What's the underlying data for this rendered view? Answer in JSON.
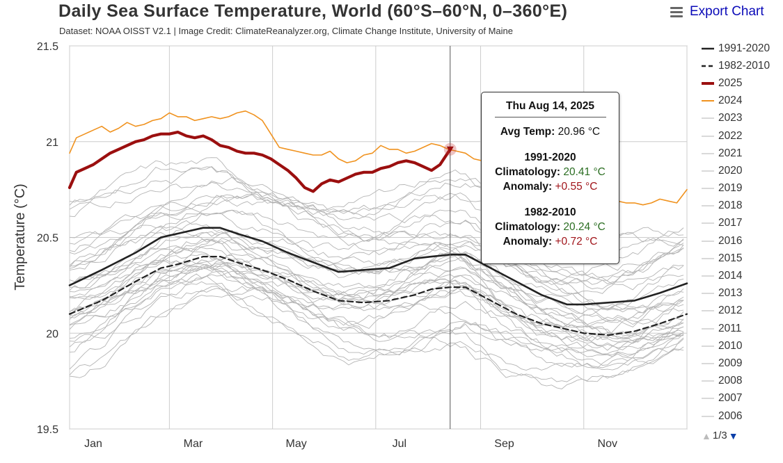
{
  "header": {
    "title": "Daily Sea Surface Temperature, World (60°S–60°N, 0–360°E)",
    "subtitle": "Dataset: NOAA OISST V2.1 | Image Credit: ClimateReanalyzer.org, Climate Change Institute, University of Maine",
    "export_label": "Export Chart"
  },
  "legend": {
    "items": [
      {
        "label": "1991-2020",
        "style": "solid-black"
      },
      {
        "label": "1982-2010",
        "style": "dashed-black"
      },
      {
        "label": "2025",
        "style": "red"
      },
      {
        "label": "2024",
        "style": "orange"
      },
      {
        "label": "2023",
        "style": "grey"
      },
      {
        "label": "2022",
        "style": "grey"
      },
      {
        "label": "2021",
        "style": "grey"
      },
      {
        "label": "2020",
        "style": "grey"
      },
      {
        "label": "2019",
        "style": "grey"
      },
      {
        "label": "2018",
        "style": "grey"
      },
      {
        "label": "2017",
        "style": "grey"
      },
      {
        "label": "2016",
        "style": "grey"
      },
      {
        "label": "2015",
        "style": "grey"
      },
      {
        "label": "2014",
        "style": "grey"
      },
      {
        "label": "2013",
        "style": "grey"
      },
      {
        "label": "2012",
        "style": "grey"
      },
      {
        "label": "2011",
        "style": "grey"
      },
      {
        "label": "2010",
        "style": "grey"
      },
      {
        "label": "2009",
        "style": "grey"
      },
      {
        "label": "2008",
        "style": "grey"
      },
      {
        "label": "2007",
        "style": "grey"
      },
      {
        "label": "2006",
        "style": "grey"
      }
    ],
    "page_label": "1/3"
  },
  "tooltip": {
    "date": "Thu Aug 14, 2025",
    "avg_label": "Avg Temp:",
    "avg_value": "20.96 °C",
    "block1_title": "1991-2020",
    "block1_clim_label": "Climatology:",
    "block1_clim_value": "20.41 °C",
    "block1_anom_label": "Anomaly:",
    "block1_anom_value": "+0.55 °C",
    "block2_title": "1982-2010",
    "block2_clim_label": "Climatology:",
    "block2_clim_value": "20.24 °C",
    "block2_anom_label": "Anomaly:",
    "block2_anom_value": "+0.72 °C"
  },
  "colors": {
    "clim_1991_2020": "#222222",
    "clim_1982_2010": "#222222",
    "year_2025": "#9b0f0f",
    "year_2024": "#f0921e",
    "past_years": "#b4b4b4",
    "grid": "#cccccc"
  },
  "chart_data": {
    "type": "line",
    "title": "Daily Sea Surface Temperature, World (60°S–60°N, 0–360°E)",
    "ylabel": "Temperature (°C)",
    "xlabel": "",
    "ylim": [
      19.5,
      21.5
    ],
    "yticks": [
      "21.5",
      "21",
      "20.5",
      "20",
      "19.5"
    ],
    "ytick_values": [
      21.5,
      21,
      20.5,
      20,
      19.5
    ],
    "xlim": [
      1,
      366
    ],
    "xticks": [
      {
        "label": "Jan",
        "day": 15
      },
      {
        "label": "Mar",
        "day": 74
      },
      {
        "label": "May",
        "day": 135
      },
      {
        "label": "Jul",
        "day": 196
      },
      {
        "label": "Sep",
        "day": 258
      },
      {
        "label": "Nov",
        "day": 319
      }
    ],
    "vertical_gridlines_day": [
      1,
      60,
      121,
      182,
      244,
      305,
      366
    ],
    "grid": true,
    "highlight": {
      "day": 226,
      "value": 20.96
    },
    "series": [
      {
        "name": "1991-2020",
        "style": "solid-black",
        "x": [
          1,
          20,
          40,
          55,
          65,
          80,
          90,
          100,
          115,
          130,
          145,
          160,
          175,
          190,
          205,
          215,
          226,
          235,
          250,
          265,
          280,
          295,
          305,
          320,
          335,
          350,
          366
        ],
        "y": [
          20.25,
          20.33,
          20.42,
          20.5,
          20.52,
          20.55,
          20.55,
          20.52,
          20.48,
          20.42,
          20.37,
          20.32,
          20.33,
          20.34,
          20.39,
          20.4,
          20.41,
          20.41,
          20.34,
          20.27,
          20.2,
          20.15,
          20.15,
          20.16,
          20.17,
          20.21,
          20.26
        ]
      },
      {
        "name": "1982-2010",
        "style": "dashed-black",
        "x": [
          1,
          20,
          40,
          55,
          65,
          80,
          90,
          100,
          115,
          130,
          145,
          160,
          175,
          190,
          205,
          215,
          226,
          235,
          250,
          265,
          280,
          295,
          305,
          320,
          335,
          350,
          366
        ],
        "y": [
          20.1,
          20.17,
          20.27,
          20.34,
          20.36,
          20.4,
          20.4,
          20.37,
          20.33,
          20.28,
          20.22,
          20.17,
          20.16,
          20.17,
          20.2,
          20.23,
          20.24,
          20.24,
          20.17,
          20.1,
          20.05,
          20.02,
          20.0,
          19.99,
          20.01,
          20.05,
          20.1
        ]
      },
      {
        "name": "2025",
        "style": "red",
        "x": [
          1,
          5,
          10,
          15,
          20,
          25,
          30,
          35,
          40,
          45,
          50,
          55,
          60,
          65,
          70,
          75,
          80,
          85,
          90,
          95,
          100,
          105,
          110,
          115,
          120,
          125,
          130,
          135,
          140,
          145,
          150,
          155,
          160,
          165,
          170,
          175,
          180,
          185,
          190,
          195,
          200,
          205,
          210,
          215,
          220,
          226
        ],
        "y": [
          20.76,
          20.84,
          20.86,
          20.88,
          20.91,
          20.94,
          20.96,
          20.98,
          21.0,
          21.01,
          21.03,
          21.04,
          21.04,
          21.05,
          21.03,
          21.02,
          21.03,
          21.01,
          20.98,
          20.97,
          20.95,
          20.94,
          20.94,
          20.93,
          20.91,
          20.88,
          20.85,
          20.81,
          20.76,
          20.74,
          20.78,
          20.8,
          20.79,
          20.81,
          20.83,
          20.84,
          20.84,
          20.86,
          20.87,
          20.89,
          20.9,
          20.89,
          20.87,
          20.85,
          20.88,
          20.96
        ]
      },
      {
        "name": "2024",
        "style": "orange",
        "x": [
          1,
          5,
          10,
          15,
          20,
          25,
          30,
          35,
          40,
          45,
          50,
          55,
          60,
          65,
          70,
          75,
          80,
          85,
          90,
          95,
          100,
          105,
          110,
          115,
          120,
          125,
          130,
          135,
          140,
          145,
          150,
          155,
          160,
          165,
          170,
          175,
          180,
          185,
          190,
          195,
          200,
          205,
          210,
          215,
          220,
          225,
          230,
          235,
          240,
          245,
          250,
          255,
          260,
          265,
          270,
          275,
          280,
          285,
          290,
          295,
          300,
          305,
          310,
          315,
          320,
          325,
          330,
          335,
          340,
          345,
          350,
          355,
          360,
          366
        ],
        "y": [
          20.94,
          21.02,
          21.04,
          21.06,
          21.08,
          21.05,
          21.07,
          21.1,
          21.08,
          21.09,
          21.11,
          21.12,
          21.15,
          21.13,
          21.13,
          21.11,
          21.12,
          21.13,
          21.12,
          21.13,
          21.15,
          21.16,
          21.14,
          21.11,
          21.04,
          20.97,
          20.96,
          20.95,
          20.94,
          20.93,
          20.93,
          20.95,
          20.91,
          20.89,
          20.9,
          20.93,
          20.94,
          20.98,
          20.96,
          20.96,
          20.94,
          20.95,
          20.97,
          20.99,
          20.98,
          20.96,
          20.95,
          20.94,
          20.91,
          20.9,
          20.87,
          20.86,
          20.85,
          20.84,
          20.82,
          20.8,
          20.8,
          20.78,
          20.77,
          20.76,
          20.75,
          20.73,
          20.71,
          20.7,
          20.7,
          20.69,
          20.68,
          20.68,
          20.67,
          20.68,
          20.7,
          20.69,
          20.68,
          20.75
        ]
      }
    ],
    "past_years_note_series": [
      "2023",
      "2022",
      "2021",
      "2020",
      "2019",
      "2018",
      "2017",
      "2016",
      "2015",
      "2014",
      "2013",
      "2012",
      "2011",
      "2010",
      "2009",
      "2008",
      "2007",
      "2006"
    ]
  }
}
